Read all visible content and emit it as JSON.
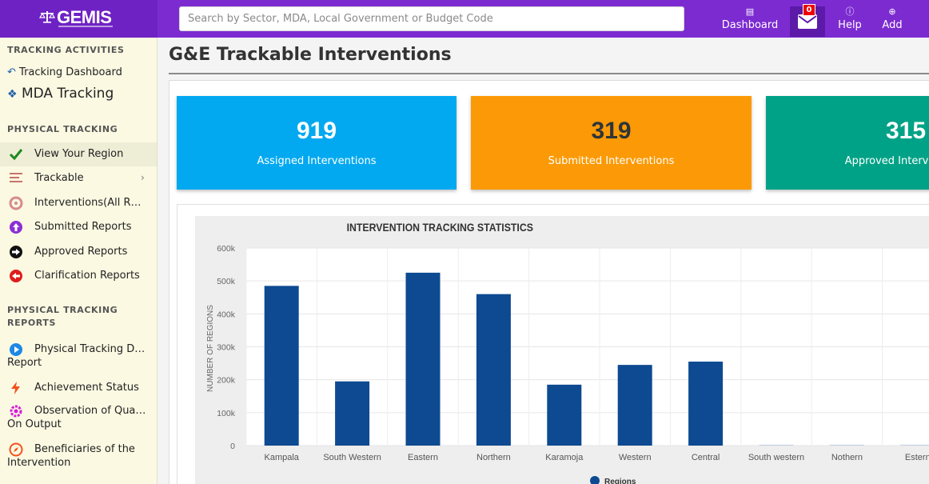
{
  "app": {
    "name": "GEMIS"
  },
  "search": {
    "placeholder": "Search by Sector, MDA, Local Government or Budget Code"
  },
  "nav": {
    "dashboard": "Dashboard",
    "help": "Help",
    "add": "Add",
    "mail_count": "0"
  },
  "sidebar": {
    "sec1": "TRACKING ACTIVITIES",
    "tracking_dashboard": "Tracking Dashboard",
    "mda_tracking": "MDA Tracking",
    "sec2": "PHYSICAL TRACKING",
    "view_region": "View Your Region",
    "trackable": "Trackable",
    "interventions_all": "Interventions(All R…",
    "submitted": "Submitted Reports",
    "approved": "Approved Reports",
    "clarification": "Clarification Reports",
    "sec3_line1": "PHYSICAL TRACKING",
    "sec3_line2": "REPORTS",
    "ptd_line1": "Physical Tracking D…",
    "ptd_line2": "Report",
    "achievement": "Achievement Status",
    "obs_line1": "Observation of Qua…",
    "obs_line2": "On Output",
    "ben_line1": "Beneficiaries of the",
    "ben_line2": "Intervention"
  },
  "page": {
    "title": "G&E Trackable Interventions"
  },
  "cards": [
    {
      "value": "919",
      "label": "Assigned Interventions",
      "color": "#03a9f0"
    },
    {
      "value": "319",
      "label": "Submitted Interventions",
      "color": "#fb9a06"
    },
    {
      "value": "315",
      "label": "Approved Interventions",
      "color": "#00a287"
    }
  ],
  "chart_data": {
    "type": "bar",
    "title": "INTERVENTION TRACKING STATISTICS",
    "ylabel": "NUMBER OF REGIONS",
    "xlabel": "",
    "ylim": [
      0,
      600000
    ],
    "yticks": [
      "0",
      "100k",
      "200k",
      "300k",
      "400k",
      "500k",
      "600k"
    ],
    "categories": [
      "Kampala",
      "South Western",
      "Eastern",
      "Northern",
      "Karamoja",
      "Western",
      "Central",
      "South western",
      "Nothern",
      "Estern"
    ],
    "series": [
      {
        "name": "Regions",
        "color": "#0d4a91",
        "values": [
          485000,
          195000,
          525000,
          460000,
          185000,
          245000,
          255000,
          0,
          0,
          0
        ]
      }
    ],
    "grid": true,
    "legend": "bottom"
  }
}
